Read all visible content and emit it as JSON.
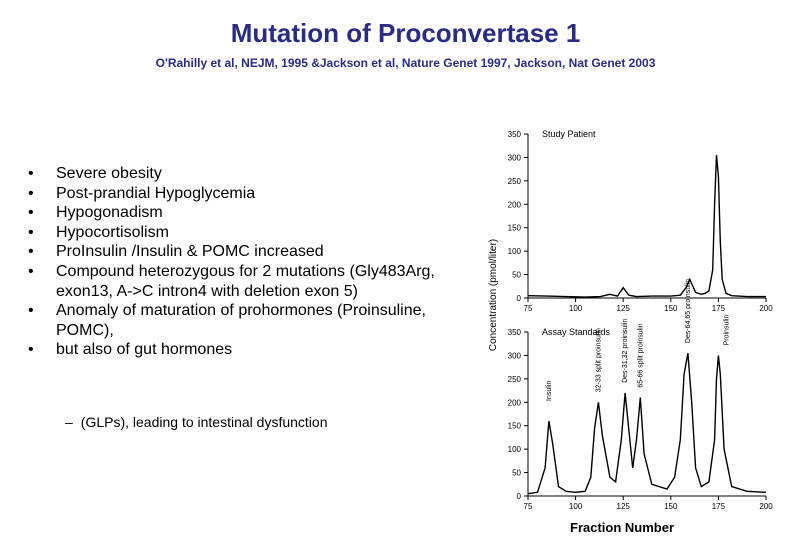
{
  "slide": {
    "title": "Mutation of  Proconvertase 1",
    "citation": "O'Rahilly et al, NEJM, 1995 &Jackson et al, Nature Genet 1997, Jackson, Nat Genet 2003",
    "bullets": [
      "Severe obesity",
      "Post-prandial Hypoglycemia",
      "Hypogonadism",
      "Hypocortisolism",
      "ProInsulin /Insulin &  POMC increased",
      "Compound heterozygous for 2 mutations (Gly483Arg, exon13, A->C intron4 with deletion exon 5)",
      "Anomaly of maturation of prohormones (Proinsuline, POMC),",
      "but also of gut hormones"
    ],
    "bullet_marker": "•",
    "sub_bullet": {
      "dash": "–",
      "text": "(GLPs),  leading to intestinal dysfunction"
    }
  },
  "figure": {
    "y_axis_label": "Concentration (pmol/liter)",
    "x_axis_label": "Fraction Number",
    "panels": [
      {
        "title": "Study Patient",
        "x_ticks": [
          "75",
          "100",
          "125",
          "150",
          "175",
          "200"
        ],
        "y_ticks": [
          "0",
          "50",
          "100",
          "150",
          "200",
          "250",
          "300",
          "350"
        ],
        "annotations": []
      },
      {
        "title": "Assay Standards",
        "x_ticks": [
          "75",
          "100",
          "125",
          "150",
          "175",
          "200"
        ],
        "y_ticks": [
          "0",
          "50",
          "100",
          "150",
          "200",
          "250",
          "300",
          "350"
        ],
        "annotations": [
          "Insulin",
          "32-33 split proinsulin",
          "Des-31,32 proinsulin",
          "65-66 split proinsulin",
          "Des-64,65 proinsulin",
          "Proinsulin"
        ]
      }
    ]
  },
  "chart_data": [
    {
      "type": "line",
      "title": "Study Patient",
      "xlabel": "Fraction Number",
      "ylabel": "Concentration (pmol/liter)",
      "xlim": [
        75,
        200
      ],
      "ylim": [
        0,
        350
      ],
      "x": [
        75,
        85,
        95,
        105,
        113,
        118,
        122,
        125,
        128,
        132,
        140,
        150,
        155,
        158,
        160,
        163,
        166,
        168,
        170,
        172,
        173,
        174,
        175,
        176,
        177,
        179,
        182,
        190,
        200
      ],
      "values": [
        5,
        4,
        3,
        2,
        3,
        8,
        4,
        22,
        6,
        3,
        4,
        4,
        6,
        22,
        40,
        12,
        8,
        10,
        15,
        60,
        200,
        305,
        260,
        120,
        40,
        10,
        5,
        3,
        3
      ],
      "series": [
        {
          "name": "Study Patient"
        }
      ]
    },
    {
      "type": "line",
      "title": "Assay Standards",
      "xlabel": "Fraction Number",
      "ylabel": "Concentration (pmol/liter)",
      "xlim": [
        75,
        200
      ],
      "ylim": [
        0,
        350
      ],
      "x": [
        75,
        80,
        84,
        86,
        88,
        91,
        95,
        100,
        105,
        108,
        110,
        112,
        114,
        118,
        121,
        124,
        126,
        128,
        130,
        132,
        134,
        136,
        140,
        148,
        152,
        155,
        157,
        159,
        161,
        163,
        166,
        170,
        173,
        174,
        175,
        176,
        178,
        182,
        190,
        200
      ],
      "values": [
        5,
        8,
        60,
        160,
        110,
        20,
        10,
        8,
        10,
        40,
        145,
        200,
        130,
        40,
        30,
        120,
        220,
        140,
        60,
        120,
        210,
        90,
        25,
        15,
        40,
        120,
        260,
        305,
        200,
        60,
        20,
        30,
        120,
        250,
        300,
        260,
        100,
        20,
        10,
        8
      ],
      "labeled_peaks": [
        {
          "name": "Insulin",
          "x": 86
        },
        {
          "name": "32-33 split proinsulin",
          "x": 112
        },
        {
          "name": "Des-31,32 proinsulin",
          "x": 126
        },
        {
          "name": "65-66 split proinsulin",
          "x": 134
        },
        {
          "name": "Des-64,65 proinsulin",
          "x": 159
        },
        {
          "name": "Proinsulin",
          "x": 175
        }
      ],
      "series": [
        {
          "name": "Assay Standards"
        }
      ]
    }
  ]
}
